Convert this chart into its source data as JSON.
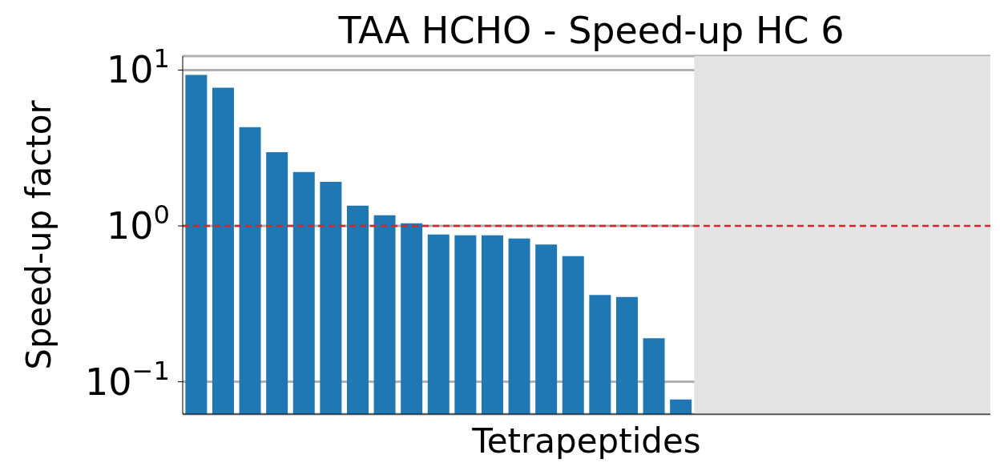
{
  "chart_data": {
    "type": "bar",
    "title": "TAA HCHO - Speed-up HC 6",
    "xlabel": "Tetrapeptides",
    "ylabel": "Speed-up factor",
    "categories": [
      null,
      null,
      null,
      null,
      null,
      null,
      null,
      null,
      null,
      null,
      null,
      null,
      null,
      null,
      null,
      null,
      null,
      null,
      null,
      null,
      null,
      null,
      null,
      null,
      null,
      null,
      null,
      null,
      null,
      null
    ],
    "values": [
      9.3,
      7.7,
      4.3,
      2.97,
      2.22,
      1.92,
      1.35,
      1.17,
      1.04,
      0.88,
      0.87,
      0.87,
      0.83,
      0.76,
      0.64,
      0.36,
      0.35,
      0.19,
      0.077,
      null,
      null,
      null,
      null,
      null,
      null,
      null,
      null,
      null,
      null,
      null
    ],
    "color": "#1f77b4",
    "log": true,
    "ylim": [
      0.062,
      12.3
    ],
    "yticks": [
      {
        "value": 0.1,
        "label": "10$^{−1}$"
      },
      {
        "value": 1,
        "label": "10$^{0}$"
      },
      {
        "value": 10,
        "label": "10$^{1}$"
      }
    ],
    "grid": "y",
    "ref_lines": [
      {
        "axis": "y",
        "value": 1,
        "color": "#d62728",
        "line_style": "dashed"
      }
    ]
  }
}
